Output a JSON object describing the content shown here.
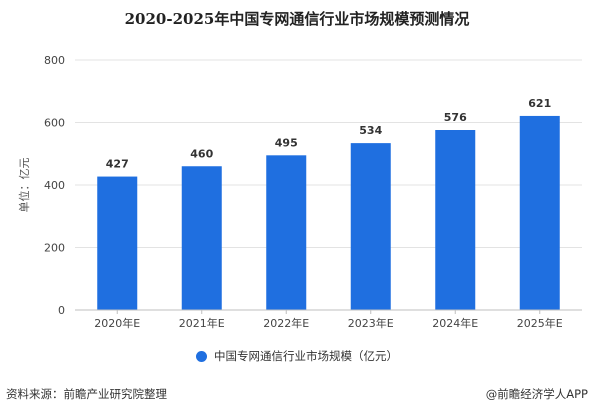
{
  "colors": {
    "bar": "#1f6fe0",
    "grid": "#e3e3e3",
    "axis": "#bfbfbf"
  },
  "footer": {
    "source": "资料来源：前瞻产业研究院整理",
    "brand": "@前瞻经济学人APP"
  },
  "chart_data": {
    "type": "bar",
    "title": "2020-2025年中国专网通信行业市场规模预测情况",
    "xlabel": "",
    "ylabel": "单位：亿元",
    "categories": [
      "2020年E",
      "2021年E",
      "2022年E",
      "2023年E",
      "2024年E",
      "2025年E"
    ],
    "series": [
      {
        "name": "中国专网通信行业市场规模（亿元）",
        "values": [
          427,
          460,
          495,
          534,
          576,
          621
        ]
      }
    ],
    "value_labels": [
      "427",
      "460",
      "495",
      "534",
      "576",
      "621"
    ],
    "ylim": [
      0,
      800
    ],
    "yticks": [
      0,
      200,
      400,
      600,
      800
    ],
    "ytick_labels": [
      "0",
      "200",
      "400",
      "600",
      "800"
    ],
    "grid": true,
    "legend": "bottom"
  }
}
